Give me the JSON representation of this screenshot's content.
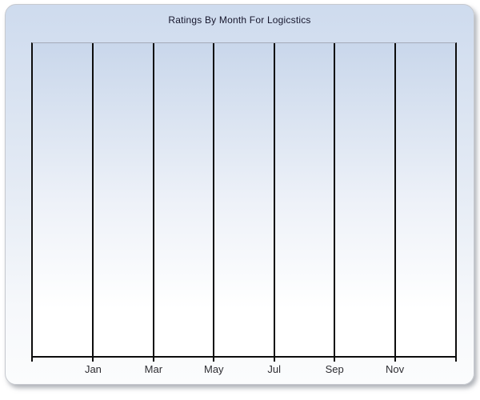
{
  "chart_data": {
    "type": "line",
    "title": "Ratings By Month For Logicstics",
    "categories": [
      "Jan",
      "Mar",
      "May",
      "Jul",
      "Sep",
      "Nov"
    ],
    "series": [],
    "xlabel": "",
    "ylabel": "",
    "legend": "none",
    "grid": "vertical gridlines only; no y-axis ticks or labels; plot area is empty (no data plotted)",
    "x_axis": {
      "tick_count": 8,
      "labels_under_internal_gridlines": true
    }
  },
  "colors": {
    "page_background": "#ffffff",
    "panel_border": "#c6c9cf",
    "panel_gradient_top": "#cedbee",
    "panel_gradient_mid": "#e3eaf4",
    "panel_gradient_low": "#f6f8fb",
    "panel_gradient_bottom": "#fbfcfd",
    "plot_gradient_top": "#c9d7eb",
    "plot_gradient_mid": "#edf1f8",
    "plot_gradient_bottom": "#ffffff",
    "plot_top_border": "#a4abb8",
    "gridline": "#0d0d0d",
    "axis": "#0d0d0d",
    "title_text": "#16162c",
    "label_text": "#2d2d32"
  }
}
